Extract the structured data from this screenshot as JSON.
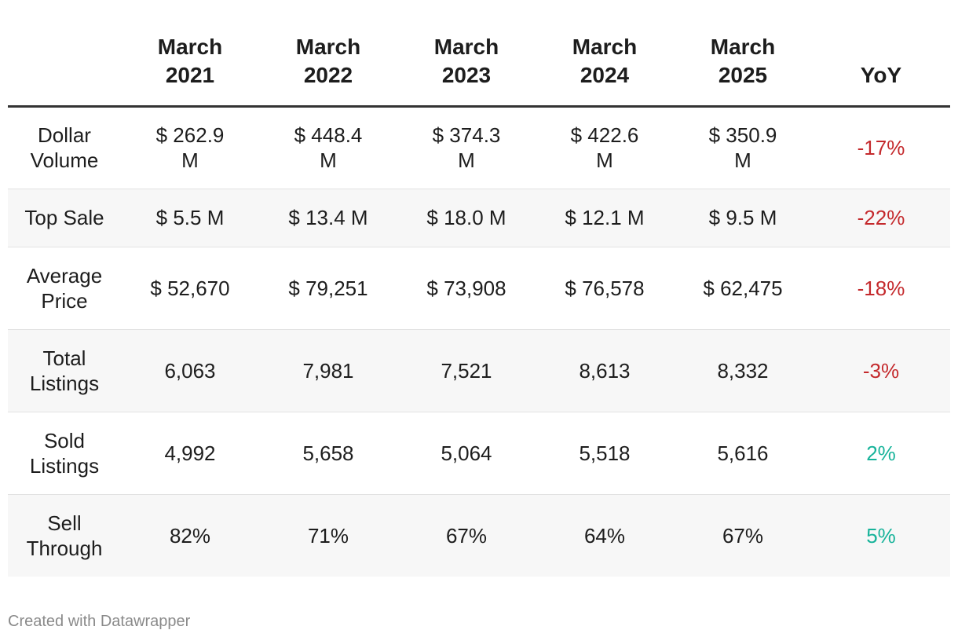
{
  "table": {
    "header": {
      "label": "",
      "years": [
        [
          "March",
          "2021"
        ],
        [
          "March",
          "2022"
        ],
        [
          "March",
          "2023"
        ],
        [
          "March",
          "2024"
        ],
        [
          "March",
          "2025"
        ]
      ],
      "yoy": "YoY"
    },
    "rows": [
      {
        "label": [
          "Dollar",
          "Volume"
        ],
        "values": [
          [
            "$ 262.9",
            "M"
          ],
          [
            "$ 448.4",
            "M"
          ],
          [
            "$ 374.3",
            "M"
          ],
          [
            "$ 422.6",
            "M"
          ],
          [
            "$ 350.9",
            "M"
          ]
        ],
        "yoy": "-17%",
        "yoy_sign": "negative"
      },
      {
        "label": [
          "Top Sale"
        ],
        "values": [
          [
            "$ 5.5 M"
          ],
          [
            "$ 13.4 M"
          ],
          [
            "$ 18.0 M"
          ],
          [
            "$ 12.1 M"
          ],
          [
            "$ 9.5 M"
          ]
        ],
        "yoy": "-22%",
        "yoy_sign": "negative"
      },
      {
        "label": [
          "Average",
          "Price"
        ],
        "values": [
          [
            "$ 52,670"
          ],
          [
            "$ 79,251"
          ],
          [
            "$ 73,908"
          ],
          [
            "$ 76,578"
          ],
          [
            "$ 62,475"
          ]
        ],
        "yoy": "-18%",
        "yoy_sign": "negative"
      },
      {
        "label": [
          "Total",
          "Listings"
        ],
        "values": [
          [
            "6,063"
          ],
          [
            "7,981"
          ],
          [
            "7,521"
          ],
          [
            "8,613"
          ],
          [
            "8,332"
          ]
        ],
        "yoy": "-3%",
        "yoy_sign": "negative"
      },
      {
        "label": [
          "Sold",
          "Listings"
        ],
        "values": [
          [
            "4,992"
          ],
          [
            "5,658"
          ],
          [
            "5,064"
          ],
          [
            "5,518"
          ],
          [
            "5,616"
          ]
        ],
        "yoy": "2%",
        "yoy_sign": "positive"
      },
      {
        "label": [
          "Sell",
          "Through"
        ],
        "values": [
          [
            "82%"
          ],
          [
            "71%"
          ],
          [
            "67%"
          ],
          [
            "64%"
          ],
          [
            "67%"
          ]
        ],
        "yoy": "5%",
        "yoy_sign": "positive"
      }
    ]
  },
  "colors": {
    "negative": "#c4292c",
    "positive": "#17b39a",
    "stripe": "#f7f7f7",
    "header_rule": "#333333"
  },
  "footer": {
    "credit": "Created with Datawrapper"
  }
}
